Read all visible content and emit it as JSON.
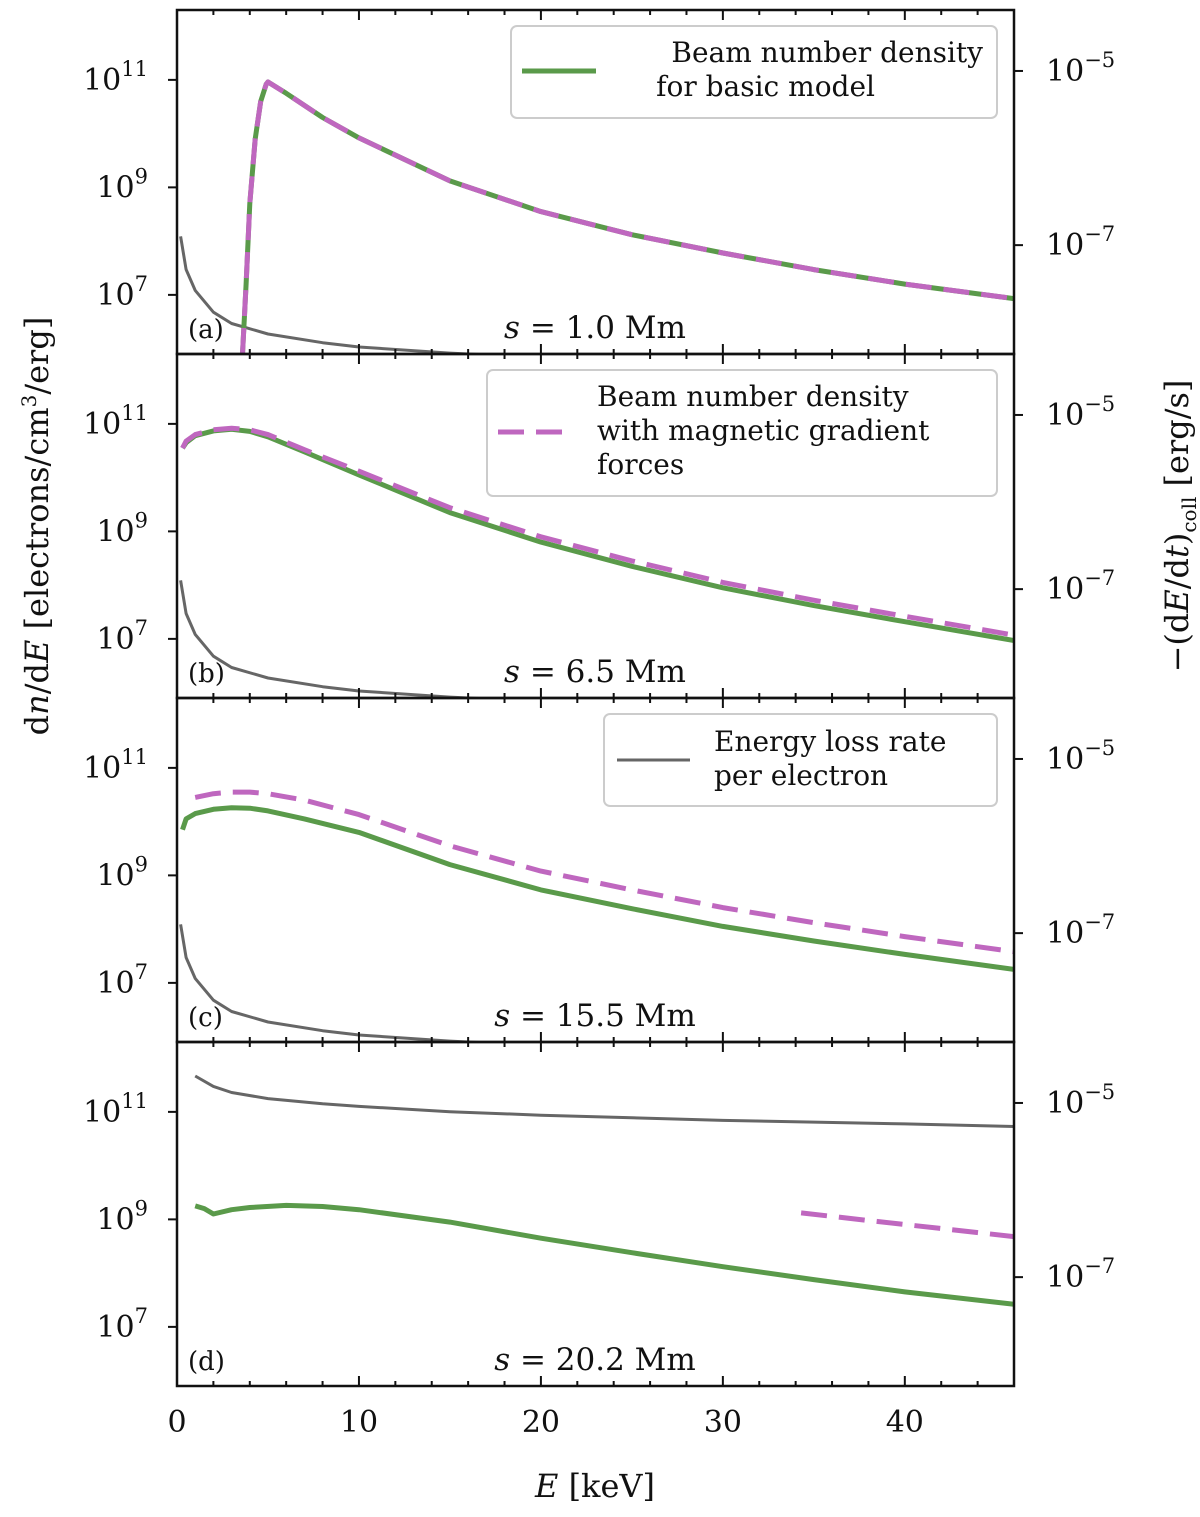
{
  "chart_data": {
    "type": "line",
    "x_axis": {
      "label_var": "E",
      "label_unit": "[keV]",
      "range": [
        0,
        46
      ],
      "ticks": [
        0,
        10,
        20,
        30,
        40
      ],
      "minor_step": 2
    },
    "y_left_axis": {
      "label_prefix": "d",
      "label_var1": "n",
      "label_mid": "/d",
      "label_var2": "E",
      "label_unit_pre": "[electrons/cm",
      "label_unit_exp": "3",
      "label_unit_post": "/erg]",
      "scale": "log",
      "range_log10": [
        5.9,
        12.3
      ],
      "ticks": [
        {
          "log": 7,
          "base": "10",
          "exp": "7"
        },
        {
          "log": 9,
          "base": "10",
          "exp": "9"
        },
        {
          "log": 11,
          "base": "10",
          "exp": "11"
        }
      ]
    },
    "y_right_axis": {
      "label_sign": "−(d",
      "label_var1": "E",
      "label_mid": "/d",
      "label_var2": "t",
      "label_close": ")",
      "label_sub": "coll",
      "label_unit": "[erg/s]",
      "scale": "log",
      "range_log10": [
        -8.25,
        -4.3
      ],
      "ticks": [
        {
          "log": -7,
          "base": "10",
          "exp": "−7"
        },
        {
          "log": -5,
          "base": "10",
          "exp": "−5"
        }
      ]
    },
    "series_styles": {
      "basic": {
        "name": "Beam number density for basic model",
        "color": "#5a9a4a",
        "width": 5,
        "dash": ""
      },
      "magnetic": {
        "name": "Beam number density with magnetic gradient forces",
        "color": "#bf67bf",
        "width": 5,
        "dash": "26 12"
      },
      "loss": {
        "name": "Energy loss rate per electron",
        "color": "#666666",
        "width": 3,
        "dash": ""
      }
    },
    "panels": [
      {
        "id": "a",
        "label": "(a)",
        "s_var": "s",
        "s_text": " = 1.0 Mm",
        "legend": {
          "series": "basic",
          "lines": [
            "Beam number density",
            "for basic model"
          ]
        },
        "series": {
          "basic": {
            "x": [
              3.6,
              3.8,
              4.0,
              4.3,
              4.6,
              4.9,
              5.0,
              6,
              8,
              10,
              15,
              20,
              25,
              30,
              35,
              40,
              46
            ],
            "y": [
              5.9,
              7.2,
              8.7,
              9.9,
              10.6,
              10.92,
              10.96,
              10.75,
              10.3,
              9.92,
              9.12,
              8.55,
              8.12,
              7.78,
              7.47,
              7.2,
              6.93
            ]
          },
          "magnetic": {
            "x": [
              3.6,
              3.8,
              4.0,
              4.3,
              4.6,
              4.9,
              5.0,
              6,
              8,
              10,
              15,
              20,
              25,
              30,
              35,
              40,
              46
            ],
            "y": [
              5.9,
              7.2,
              8.7,
              9.9,
              10.6,
              10.92,
              10.96,
              10.75,
              10.3,
              9.92,
              9.12,
              8.55,
              8.12,
              7.78,
              7.47,
              7.2,
              6.93
            ]
          },
          "loss": {
            "x": [
              0.2,
              0.5,
              1,
              2,
              3,
              5,
              8,
              10,
              15,
              20,
              25,
              30,
              35,
              40,
              46
            ],
            "y": [
              -6.9,
              -7.28,
              -7.52,
              -7.77,
              -7.9,
              -8.02,
              -8.12,
              -8.17,
              -8.24,
              -8.29,
              -8.33,
              -8.37,
              -8.4,
              -8.43,
              -8.46
            ]
          }
        }
      },
      {
        "id": "b",
        "label": "(b)",
        "s_var": "s",
        "s_text": " = 6.5 Mm",
        "legend": {
          "series": "magnetic",
          "lines": [
            "Beam number density",
            "with magnetic gradient",
            "forces"
          ]
        },
        "series": {
          "basic": {
            "x": [
              0.3,
              0.5,
              1,
              2,
              3,
              4,
              5,
              7,
              10,
              15,
              20,
              25,
              30,
              35,
              40,
              46
            ],
            "y": [
              10.55,
              10.65,
              10.78,
              10.87,
              10.9,
              10.86,
              10.76,
              10.48,
              10.05,
              9.35,
              8.8,
              8.35,
              7.95,
              7.62,
              7.32,
              6.97
            ]
          },
          "magnetic": {
            "x": [
              0.3,
              0.5,
              1,
              2,
              3,
              4,
              5,
              7,
              10,
              15,
              20,
              25,
              30,
              35,
              40,
              46
            ],
            "y": [
              10.55,
              10.68,
              10.8,
              10.89,
              10.92,
              10.89,
              10.8,
              10.52,
              10.12,
              9.44,
              8.9,
              8.45,
              8.05,
              7.72,
              7.42,
              7.07
            ]
          },
          "loss": {
            "x": [
              0.2,
              0.5,
              1,
              2,
              3,
              5,
              8,
              10,
              15,
              20,
              25,
              30,
              35,
              40,
              46
            ],
            "y": [
              -6.9,
              -7.28,
              -7.52,
              -7.77,
              -7.9,
              -8.02,
              -8.12,
              -8.17,
              -8.24,
              -8.29,
              -8.33,
              -8.37,
              -8.4,
              -8.43,
              -8.46
            ]
          }
        }
      },
      {
        "id": "c",
        "label": "(c)",
        "s_var": "s",
        "s_text": " = 15.5 Mm",
        "legend": {
          "series": "loss",
          "lines": [
            "Energy loss rate",
            "per electron"
          ]
        },
        "series": {
          "basic": {
            "x": [
              0.3,
              0.5,
              1,
              2,
              3,
              4,
              5,
              7,
              10,
              15,
              20,
              25,
              30,
              35,
              40,
              46
            ],
            "y": [
              9.85,
              10.05,
              10.15,
              10.23,
              10.26,
              10.25,
              10.2,
              10.05,
              9.8,
              9.2,
              8.73,
              8.38,
              8.05,
              7.78,
              7.53,
              7.25
            ]
          },
          "magnetic": {
            "x": [
              1,
              2,
              3,
              4,
              5,
              7,
              10,
              15,
              20,
              25,
              30,
              35,
              40,
              46
            ],
            "y": [
              10.45,
              10.52,
              10.55,
              10.55,
              10.52,
              10.4,
              10.13,
              9.55,
              9.08,
              8.73,
              8.4,
              8.12,
              7.86,
              7.58
            ]
          },
          "loss": {
            "x": [
              0.2,
              0.5,
              1,
              2,
              3,
              5,
              8,
              10,
              15,
              20,
              25,
              30,
              35,
              40,
              46
            ],
            "y": [
              -6.9,
              -7.28,
              -7.52,
              -7.77,
              -7.9,
              -8.02,
              -8.12,
              -8.17,
              -8.24,
              -8.29,
              -8.33,
              -8.37,
              -8.4,
              -8.43,
              -8.46
            ]
          }
        }
      },
      {
        "id": "d",
        "label": "(d)",
        "s_var": "s",
        "s_text": " = 20.2 Mm",
        "legend": null,
        "series": {
          "basic": {
            "x": [
              1,
              1.5,
              2,
              3,
              4,
              6,
              8,
              10,
              15,
              20,
              25,
              30,
              35,
              40,
              46
            ],
            "y": [
              9.25,
              9.2,
              9.1,
              9.18,
              9.22,
              9.26,
              9.24,
              9.18,
              8.95,
              8.65,
              8.38,
              8.12,
              7.88,
              7.65,
              7.42
            ]
          },
          "magnetic": {
            "x": [
              34.3,
              38,
              42,
              46
            ],
            "y": [
              9.12,
              8.98,
              8.83,
              8.68
            ]
          },
          "loss": {
            "x": [
              1,
              2,
              3,
              5,
              8,
              10,
              15,
              20,
              25,
              30,
              35,
              40,
              46
            ],
            "y": [
              -4.69,
              -4.81,
              -4.88,
              -4.95,
              -5.01,
              -5.04,
              -5.1,
              -5.14,
              -5.17,
              -5.2,
              -5.22,
              -5.24,
              -5.27
            ]
          }
        }
      }
    ]
  }
}
